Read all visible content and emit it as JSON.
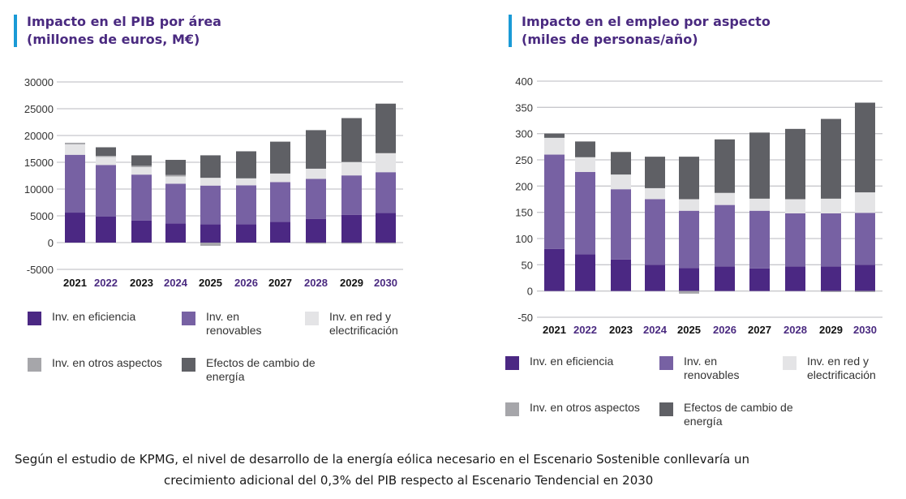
{
  "footer": {
    "line1": "Según el estudio de KPMG, el nivel de desarrollo de la energía eólica necesario en el Escenario Sostenible conllevaría un",
    "line2": "crecimiento adicional del 0,3% del PIB respecto al Escenario Tendencial en 2030"
  },
  "colors": {
    "eficiencia": "#4b2883",
    "renovables": "#7761a3",
    "red": "#e4e4e6",
    "otros": "#a6a6aa",
    "efectos": "#5f6065",
    "title": "#4a2a80",
    "title_bar": "#1a9ad6",
    "year_dark": "#111111",
    "year_purple": "#4a2a80"
  },
  "legend": [
    {
      "key": "eficiencia",
      "label": "Inv. en eficiencia"
    },
    {
      "key": "renovables",
      "label": "Inv. en renovables"
    },
    {
      "key": "red",
      "label": "Inv. en red y electrificación"
    },
    {
      "key": "otros",
      "label": "Inv. en otros aspectos"
    },
    {
      "key": "efectos",
      "label": "Efectos de cambio de energía"
    }
  ],
  "chart_data": [
    {
      "type": "bar",
      "stacked": true,
      "title": "Impacto en el PIB por área",
      "subtitle": "(millones de euros, M€)",
      "xlabel": "",
      "ylabel": "",
      "ylim": [
        -5000,
        30000
      ],
      "yticks": [
        -5000,
        0,
        5000,
        10000,
        15000,
        20000,
        25000,
        30000
      ],
      "grid": true,
      "legend_position": "bottom",
      "categories": [
        "2021",
        "2022",
        "2023",
        "2024",
        "2025",
        "2026",
        "2027",
        "2028",
        "2029",
        "2030"
      ],
      "series": [
        {
          "key": "eficiencia",
          "name": "Inv. en eficiencia",
          "values": [
            5600,
            4850,
            4100,
            3600,
            3400,
            3450,
            3900,
            4400,
            5200,
            5550
          ]
        },
        {
          "key": "renovables",
          "name": "Inv. en renovables",
          "values": [
            10800,
            9650,
            8600,
            7400,
            7250,
            7250,
            7400,
            7500,
            7350,
            7600
          ]
        },
        {
          "key": "red",
          "name": "Inv. en red y electrificación",
          "values": [
            1950,
            1500,
            1400,
            1350,
            1450,
            1300,
            1600,
            1900,
            2500,
            3550
          ]
        },
        {
          "key": "otros",
          "name": "Inv. en otros aspectos",
          "values": [
            300,
            200,
            250,
            300,
            -600,
            0,
            0,
            -200,
            -200,
            -200
          ]
        },
        {
          "key": "efectos",
          "name": "Efectos de cambio de energía",
          "values": [
            0,
            1600,
            1950,
            2800,
            4200,
            5050,
            5950,
            7200,
            8200,
            9250
          ]
        }
      ]
    },
    {
      "type": "bar",
      "stacked": true,
      "title": "Impacto en el empleo por aspecto",
      "subtitle": "(miles de personas/año)",
      "xlabel": "",
      "ylabel": "",
      "ylim": [
        -50,
        400
      ],
      "yticks": [
        -50,
        0,
        50,
        100,
        150,
        200,
        250,
        300,
        350,
        400
      ],
      "grid": true,
      "legend_position": "bottom",
      "categories": [
        "2021",
        "2022",
        "2023",
        "2024",
        "2025",
        "2026",
        "2027",
        "2028",
        "2029",
        "2030"
      ],
      "series": [
        {
          "key": "eficiencia",
          "name": "Inv. en eficiencia",
          "values": [
            80,
            70,
            60,
            50,
            44,
            47,
            43,
            47,
            47,
            50
          ]
        },
        {
          "key": "renovables",
          "name": "Inv. en renovables",
          "values": [
            180,
            157,
            134,
            125,
            109,
            117,
            110,
            101,
            101,
            99
          ]
        },
        {
          "key": "red",
          "name": "Inv. en red y electrificación",
          "values": [
            32,
            28,
            28,
            21,
            22,
            23,
            23,
            27,
            28,
            39
          ]
        },
        {
          "key": "otros",
          "name": "Inv. en otros aspectos",
          "values": [
            0,
            0,
            0,
            0,
            -5,
            0,
            0,
            0,
            -2,
            -2
          ]
        },
        {
          "key": "efectos",
          "name": "Efectos de cambio de energía",
          "values": [
            8,
            30,
            43,
            60,
            81,
            102,
            126,
            134,
            152,
            171
          ]
        }
      ]
    }
  ]
}
